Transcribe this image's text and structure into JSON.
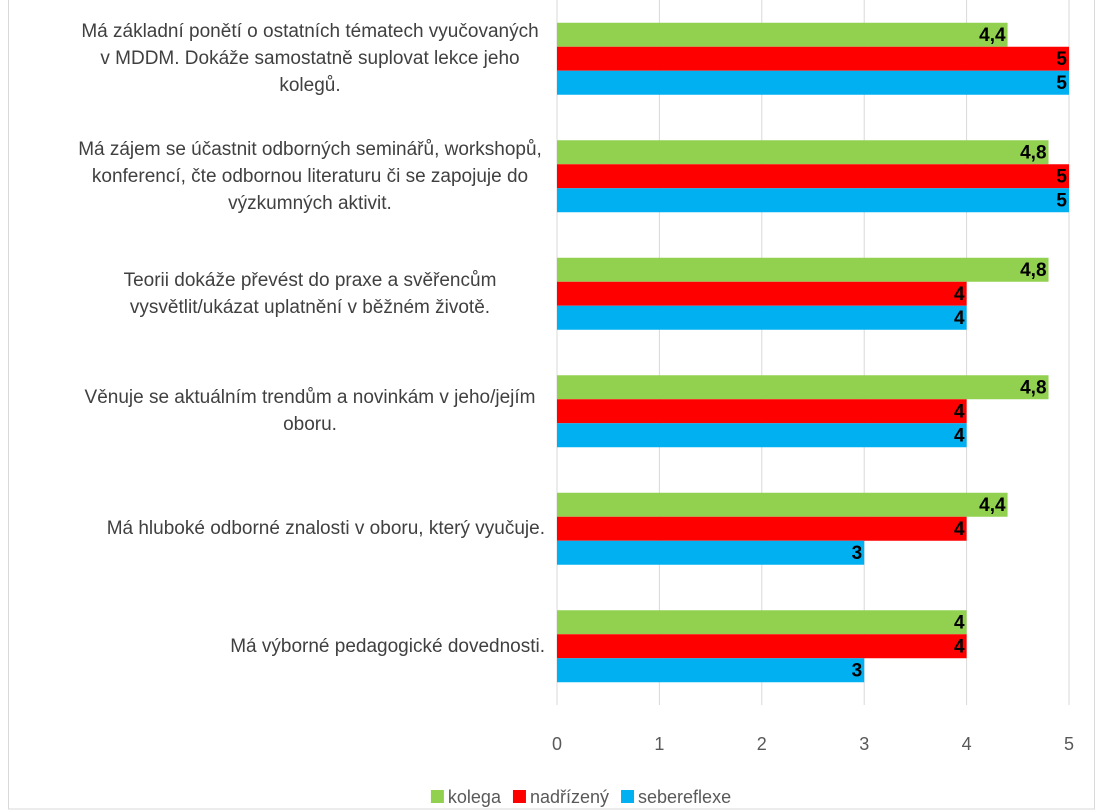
{
  "chart_data": {
    "type": "barh",
    "categories": [
      "Má základní ponětí o ostatních tématech vyučovaných v MDDM. Dokáže samostatně suplovat lekce jeho kolegů.",
      "Má zájem se účastnit odborných seminářů, workshopů, konferencí, čte odbornou literaturu či se zapojuje do výzkumných aktivit.",
      "Teorii dokáže převést do praxe a svěřencům vysvětlit/ukázat uplatnění v běžném životě.",
      "Věnuje se aktuálním trendům a novinkám v jeho/jejím oboru.",
      "Má hluboké odborné znalosti v oboru, který vyučuje.",
      "Má výborné pedagogické dovednosti."
    ],
    "series": [
      {
        "name": "kolega",
        "color": "#92d050",
        "values": [
          4.4,
          4.8,
          4.8,
          4.8,
          4.4,
          4
        ],
        "value_labels": [
          "4,4",
          "4,8",
          "4,8",
          "4,8",
          "4,4",
          "4"
        ]
      },
      {
        "name": "nadřízený",
        "color": "#ff0000",
        "values": [
          5,
          5,
          4,
          4,
          4,
          4
        ]
      },
      {
        "name": "sebereflexe",
        "color": "#00b0f0",
        "values": [
          5,
          5,
          4,
          4,
          3,
          3
        ]
      }
    ],
    "xlim": [
      0,
      5
    ],
    "xticks": [
      0,
      1,
      2,
      3,
      4,
      5
    ],
    "grid": true,
    "legend": "bottom"
  }
}
